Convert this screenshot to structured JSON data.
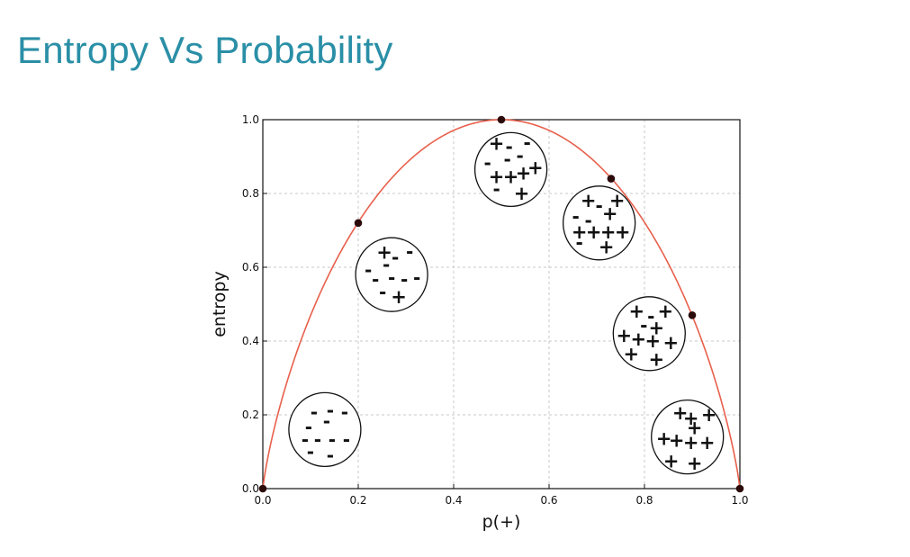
{
  "slide": {
    "title": "Entropy Vs Probability"
  },
  "chart_data": {
    "type": "line",
    "title": "",
    "xlabel": "p(+)",
    "ylabel": "entropy",
    "xlim": [
      0.0,
      1.0
    ],
    "ylim": [
      0.0,
      1.0
    ],
    "x_ticks": [
      "0.0",
      "0.2",
      "0.4",
      "0.6",
      "0.8",
      "1.0"
    ],
    "y_ticks": [
      "0.0",
      "0.2",
      "0.4",
      "0.6",
      "0.8",
      "1.0"
    ],
    "grid": true,
    "series": [
      {
        "color": "#e8604c",
        "function": "binary entropy"
      }
    ],
    "points": [
      {
        "x": 0.0,
        "y": 0.0
      },
      {
        "x": 0.2,
        "y": 0.72
      },
      {
        "x": 0.5,
        "y": 1.0
      },
      {
        "x": 0.73,
        "y": 0.84
      },
      {
        "x": 0.9,
        "y": 0.47
      },
      {
        "x": 1.0,
        "y": 0.0
      }
    ],
    "point_color": "#2b0a0a",
    "annotations": [
      {
        "cx": 0.13,
        "cy": 0.16,
        "symbols": [
          {
            "s": "-",
            "dx": -0.3,
            "dy": -0.45
          },
          {
            "s": "-",
            "dx": 0.15,
            "dy": -0.5
          },
          {
            "s": "-",
            "dx": 0.55,
            "dy": -0.45
          },
          {
            "s": "-",
            "dx": -0.45,
            "dy": -0.05
          },
          {
            "s": "-",
            "dx": 0.05,
            "dy": -0.2
          },
          {
            "s": "-",
            "dx": -0.55,
            "dy": 0.3
          },
          {
            "s": "-",
            "dx": -0.2,
            "dy": 0.3
          },
          {
            "s": "-",
            "dx": 0.2,
            "dy": 0.3
          },
          {
            "s": "-",
            "dx": 0.6,
            "dy": 0.3
          },
          {
            "s": "-",
            "dx": -0.4,
            "dy": 0.62
          },
          {
            "s": "-",
            "dx": 0.15,
            "dy": 0.72
          }
        ]
      },
      {
        "cx": 0.27,
        "cy": 0.58,
        "symbols": [
          {
            "s": "+",
            "dx": -0.2,
            "dy": -0.6
          },
          {
            "s": "-",
            "dx": 0.1,
            "dy": -0.45
          },
          {
            "s": "-",
            "dx": 0.5,
            "dy": -0.6
          },
          {
            "s": "-",
            "dx": -0.65,
            "dy": -0.1
          },
          {
            "s": "-",
            "dx": -0.15,
            "dy": -0.25
          },
          {
            "s": "-",
            "dx": -0.45,
            "dy": 0.15
          },
          {
            "s": "-",
            "dx": 0.0,
            "dy": 0.1
          },
          {
            "s": "-",
            "dx": 0.35,
            "dy": 0.15
          },
          {
            "s": "-",
            "dx": 0.7,
            "dy": 0.1
          },
          {
            "s": "-",
            "dx": -0.25,
            "dy": 0.5
          },
          {
            "s": "+",
            "dx": 0.2,
            "dy": 0.6
          }
        ]
      },
      {
        "cx": 0.52,
        "cy": 0.865,
        "symbols": [
          {
            "s": "+",
            "dx": -0.4,
            "dy": -0.7
          },
          {
            "s": "-",
            "dx": -0.05,
            "dy": -0.6
          },
          {
            "s": "-",
            "dx": 0.45,
            "dy": -0.7
          },
          {
            "s": "-",
            "dx": -0.65,
            "dy": -0.15
          },
          {
            "s": "-",
            "dx": -0.1,
            "dy": -0.25
          },
          {
            "s": "-",
            "dx": 0.25,
            "dy": -0.35
          },
          {
            "s": "+",
            "dx": 0.68,
            "dy": -0.05
          },
          {
            "s": "+",
            "dx": -0.4,
            "dy": 0.2
          },
          {
            "s": "+",
            "dx": 0.0,
            "dy": 0.2
          },
          {
            "s": "+",
            "dx": 0.35,
            "dy": 0.1
          },
          {
            "s": "-",
            "dx": -0.4,
            "dy": 0.55
          },
          {
            "s": "+",
            "dx": 0.3,
            "dy": 0.65
          }
        ]
      },
      {
        "cx": 0.705,
        "cy": 0.72,
        "symbols": [
          {
            "s": "+",
            "dx": -0.3,
            "dy": -0.6
          },
          {
            "s": "-",
            "dx": 0.0,
            "dy": -0.45
          },
          {
            "s": "+",
            "dx": 0.5,
            "dy": -0.6
          },
          {
            "s": "-",
            "dx": -0.65,
            "dy": -0.15
          },
          {
            "s": "-",
            "dx": -0.3,
            "dy": -0.05
          },
          {
            "s": "+",
            "dx": 0.3,
            "dy": -0.25
          },
          {
            "s": "+",
            "dx": -0.55,
            "dy": 0.25
          },
          {
            "s": "+",
            "dx": -0.15,
            "dy": 0.25
          },
          {
            "s": "+",
            "dx": 0.25,
            "dy": 0.25
          },
          {
            "s": "+",
            "dx": 0.65,
            "dy": 0.25
          },
          {
            "s": "-",
            "dx": -0.55,
            "dy": 0.55
          },
          {
            "s": "+",
            "dx": 0.2,
            "dy": 0.65
          }
        ]
      },
      {
        "cx": 0.81,
        "cy": 0.42,
        "symbols": [
          {
            "s": "+",
            "dx": -0.35,
            "dy": -0.6
          },
          {
            "s": "-",
            "dx": 0.05,
            "dy": -0.45
          },
          {
            "s": "+",
            "dx": 0.45,
            "dy": -0.6
          },
          {
            "s": "-",
            "dx": -0.15,
            "dy": -0.2
          },
          {
            "s": "+",
            "dx": 0.2,
            "dy": -0.15
          },
          {
            "s": "+",
            "dx": -0.7,
            "dy": 0.05
          },
          {
            "s": "+",
            "dx": -0.3,
            "dy": 0.15
          },
          {
            "s": "+",
            "dx": 0.1,
            "dy": 0.2
          },
          {
            "s": "+",
            "dx": 0.6,
            "dy": 0.25
          },
          {
            "s": "+",
            "dx": -0.5,
            "dy": 0.55
          },
          {
            "s": "+",
            "dx": 0.2,
            "dy": 0.7
          }
        ]
      },
      {
        "cx": 0.89,
        "cy": 0.14,
        "symbols": [
          {
            "s": "+",
            "dx": -0.2,
            "dy": -0.65
          },
          {
            "s": "+",
            "dx": 0.1,
            "dy": -0.5
          },
          {
            "s": "+",
            "dx": 0.6,
            "dy": -0.6
          },
          {
            "s": "+",
            "dx": 0.2,
            "dy": -0.25
          },
          {
            "s": "+",
            "dx": -0.65,
            "dy": 0.05
          },
          {
            "s": "+",
            "dx": -0.3,
            "dy": 0.1
          },
          {
            "s": "+",
            "dx": 0.1,
            "dy": 0.15
          },
          {
            "s": "+",
            "dx": 0.55,
            "dy": 0.15
          },
          {
            "s": "+",
            "dx": -0.45,
            "dy": 0.65
          },
          {
            "s": "+",
            "dx": 0.2,
            "dy": 0.72
          }
        ]
      }
    ]
  }
}
